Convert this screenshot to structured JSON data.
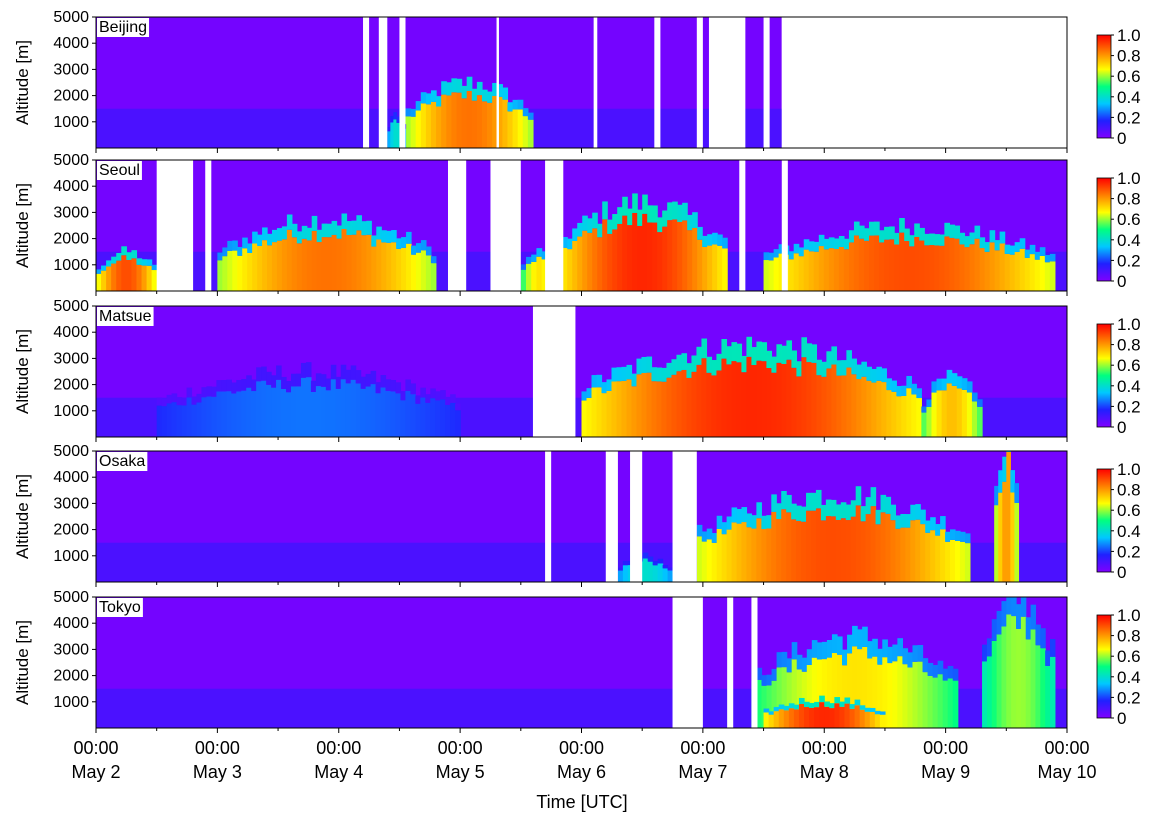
{
  "chart_data": {
    "type": "heatmap",
    "title": "",
    "xlabel": "Time [UTC]",
    "ylabel": "Altitude [m]",
    "x_range": [
      "2019-05-02 00:00",
      "2019-05-10 00:00"
    ],
    "x_ticks": [
      {
        "time": "00:00",
        "date": "May 2"
      },
      {
        "time": "00:00",
        "date": "May 3"
      },
      {
        "time": "00:00",
        "date": "May 4"
      },
      {
        "time": "00:00",
        "date": "May 5"
      },
      {
        "time": "00:00",
        "date": "May 6"
      },
      {
        "time": "00:00",
        "date": "May 7"
      },
      {
        "time": "00:00",
        "date": "May 8"
      },
      {
        "time": "00:00",
        "date": "May 9"
      },
      {
        "time": "00:00",
        "date": "May 10"
      }
    ],
    "y_ticks": [
      "1000",
      "2000",
      "3000",
      "4000",
      "5000"
    ],
    "ylim": [
      0,
      5000
    ],
    "colorbar": {
      "range": [
        0,
        1.0
      ],
      "ticks": [
        "0",
        "0.2",
        "0.4",
        "0.6",
        "0.8",
        "1.0"
      ],
      "colors": [
        "#8000ff",
        "#2020ff",
        "#00c8ff",
        "#00ff80",
        "#ffff00",
        "#ff7f00",
        "#ff0000"
      ]
    },
    "panels": [
      {
        "name": "Beijing",
        "data_end_day": 5.65,
        "gaps": [
          [
            2.2,
            2.25
          ],
          [
            2.33,
            2.4
          ],
          [
            2.5,
            2.55
          ],
          [
            3.3,
            3.32
          ],
          [
            4.1,
            4.13
          ],
          [
            4.6,
            4.65
          ],
          [
            4.95,
            5.0
          ],
          [
            5.05,
            5.35
          ],
          [
            5.5,
            5.55
          ]
        ],
        "events": [
          {
            "start": 2.55,
            "end": 3.6,
            "base": 0,
            "top": 2000,
            "value": 0.85
          },
          {
            "start": 2.4,
            "end": 2.55,
            "base": 0,
            "top": 1000,
            "value": 0.4
          }
        ]
      },
      {
        "name": "Seoul",
        "data_end_day": 8.0,
        "gaps": [
          [
            0.5,
            0.8
          ],
          [
            0.9,
            0.95
          ],
          [
            2.9,
            3.05
          ],
          [
            3.25,
            3.5
          ],
          [
            3.7,
            3.85
          ],
          [
            5.3,
            5.35
          ],
          [
            5.65,
            5.7
          ]
        ],
        "events": [
          {
            "start": 0.0,
            "end": 0.5,
            "base": 0,
            "top": 1200,
            "value": 0.9
          },
          {
            "start": 1.0,
            "end": 2.8,
            "base": 0,
            "top": 2200,
            "value": 0.85
          },
          {
            "start": 3.5,
            "end": 3.8,
            "base": 0,
            "top": 1200,
            "value": 0.7
          },
          {
            "start": 3.8,
            "end": 5.2,
            "base": 0,
            "top": 2700,
            "value": 0.95
          },
          {
            "start": 5.5,
            "end": 7.9,
            "base": 0,
            "top": 2000,
            "value": 0.9
          }
        ]
      },
      {
        "name": "Matsue",
        "data_end_day": 8.0,
        "gaps": [
          [
            3.6,
            3.95
          ]
        ],
        "events": [
          {
            "start": 0.5,
            "end": 3.0,
            "base": 0,
            "top": 2000,
            "value": 0.25
          },
          {
            "start": 4.0,
            "end": 6.8,
            "base": 0,
            "top": 2800,
            "value": 0.95
          },
          {
            "start": 6.8,
            "end": 7.3,
            "base": 0,
            "top": 1800,
            "value": 0.75
          }
        ]
      },
      {
        "name": "Osaka",
        "data_end_day": 8.0,
        "gaps": [
          [
            3.7,
            3.75
          ],
          [
            4.2,
            4.3
          ],
          [
            4.4,
            4.5
          ],
          [
            4.75,
            4.95
          ]
        ],
        "events": [
          {
            "start": 4.3,
            "end": 4.75,
            "base": 0,
            "top": 800,
            "value": 0.4
          },
          {
            "start": 4.95,
            "end": 7.2,
            "base": 0,
            "top": 2700,
            "value": 0.9
          },
          {
            "start": 7.4,
            "end": 7.6,
            "base": 0,
            "top": 4500,
            "value": 0.8
          }
        ]
      },
      {
        "name": "Tokyo",
        "data_end_day": 8.0,
        "gaps": [
          [
            4.75,
            5.0
          ],
          [
            5.2,
            5.25
          ],
          [
            5.4,
            5.45
          ]
        ],
        "events": [
          {
            "start": 5.4,
            "end": 7.1,
            "base": 0,
            "top": 2800,
            "value": 0.7
          },
          {
            "start": 5.5,
            "end": 6.5,
            "base": 0,
            "top": 900,
            "value": 0.95
          },
          {
            "start": 7.3,
            "end": 7.9,
            "base": 0,
            "top": 4000,
            "value": 0.6
          }
        ]
      }
    ]
  }
}
